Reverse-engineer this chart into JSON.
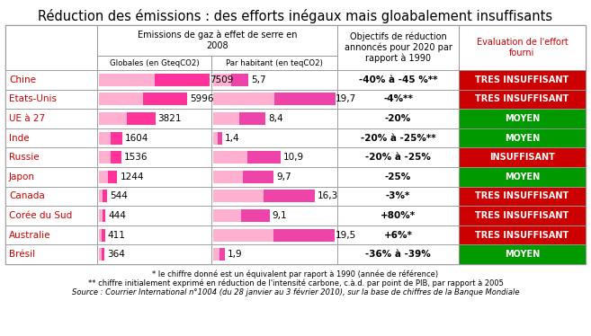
{
  "title": "Réduction des émissions : des efforts inégaux mais gloabalement insuffisants",
  "countries": [
    "Chine",
    "Etats-Unis",
    "UE à 27",
    "Inde",
    "Russie",
    "Japon",
    "Canada",
    "Corée du Sud",
    "Australie",
    "Brésil"
  ],
  "globales": [
    7509,
    5996,
    3821,
    1604,
    1536,
    1244,
    544,
    444,
    411,
    364
  ],
  "par_habitant": [
    "5,7",
    "19,7",
    "8,4",
    "1,4",
    "10,9",
    "9,7",
    "16,3",
    "9,1",
    "19,5",
    "1,9"
  ],
  "par_habitant_vals": [
    5.7,
    19.7,
    8.4,
    1.4,
    10.9,
    9.7,
    16.3,
    9.1,
    19.5,
    1.9
  ],
  "objectifs": [
    "-40% à -45 %**",
    "-4%**",
    "-20%",
    "-20% à -25%**",
    "-20% à -25%",
    "-25%",
    "-3%*",
    "+80%*",
    "+6%*",
    "-36% à -39%"
  ],
  "evaluation": [
    "TRES INSUFFISANT",
    "TRES INSUFFISANT",
    "MOYEN",
    "MOYEN",
    "INSUFFISANT",
    "MOYEN",
    "TRES INSUFFISANT",
    "TRES INSUFFISANT",
    "TRES INSUFFISANT",
    "MOYEN"
  ],
  "eval_colors": [
    "#cc0000",
    "#cc0000",
    "#009900",
    "#009900",
    "#cc0000",
    "#009900",
    "#cc0000",
    "#cc0000",
    "#cc0000",
    "#009900"
  ],
  "col_header1": "Emissions de gaz à effet de serre en\n2008",
  "col_header2": "Objectifs de réduction\nannoncés pour 2020 par\nrapport à 1990",
  "col_header3": "Evaluation de l'effort\nfourni",
  "sub_header1": "Globales (en GteqCO2)",
  "sub_header2": "Par habitant (en teqCO2)",
  "footnote1": "* le chiffre donné est un équivalent par raport à 1990 (année de référence)",
  "footnote2": "** chiffre initialement exprimé en réduction de l'intensité carbone, c.à.d. par point de PIB, par rapport à 2005",
  "footnote3": "Source : Courrier International n°1004 (du 28 janvier au 3 février 2010), sur la base de chiffres de la Banque Mondiale",
  "max_globale": 7509,
  "max_habitant": 19.7,
  "bg_color": "#ffffff",
  "border_color": "#999999",
  "title_color": "#cc0000",
  "country_color": "#cc0000",
  "title_fontsize": 10.5,
  "header_fontsize": 7.0,
  "subheader_fontsize": 6.2,
  "cell_fontsize": 7.5,
  "country_fontsize": 7.5,
  "eval_fontsize": 7.0,
  "footnote_fontsize": 6.0
}
